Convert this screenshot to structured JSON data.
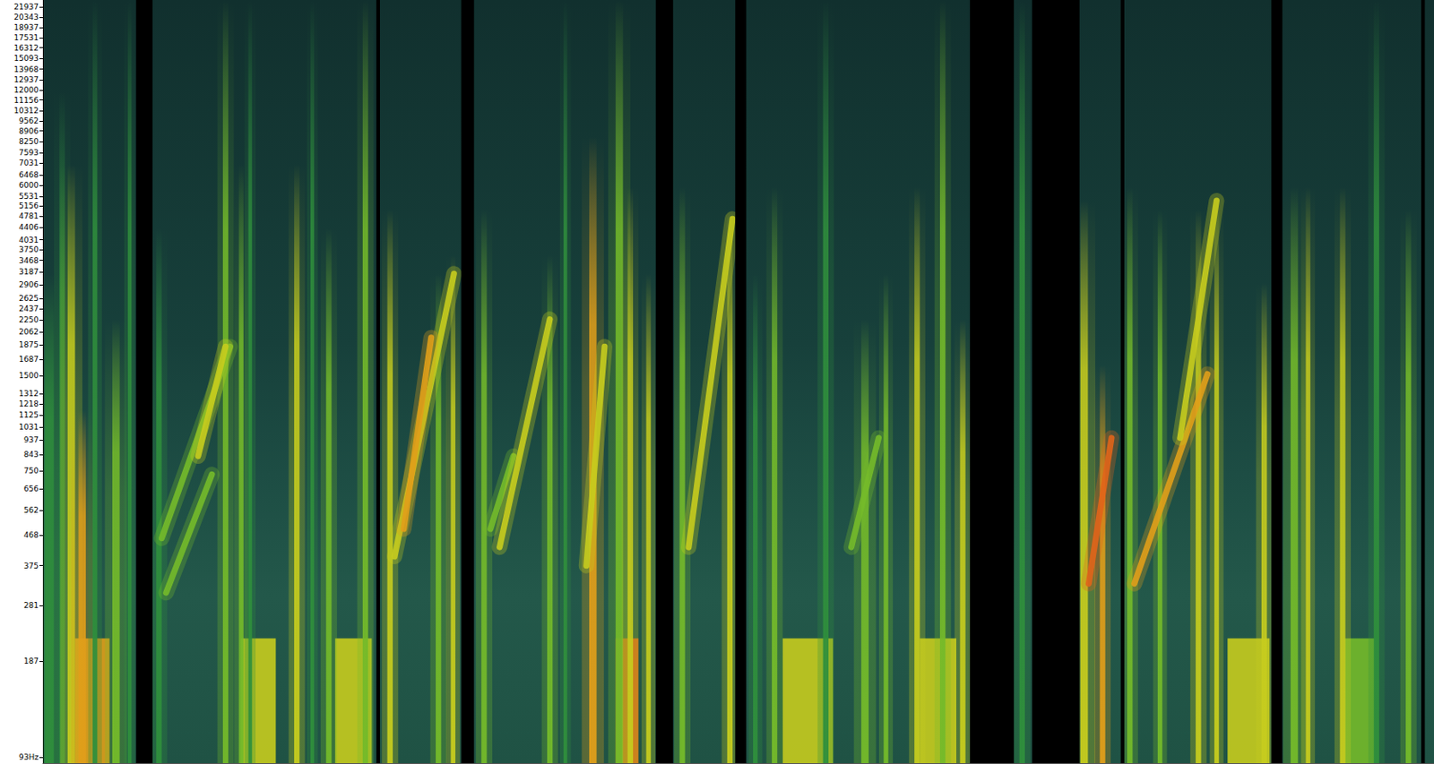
{
  "chart_data": {
    "type": "spectrogram",
    "log": "y",
    "grid": false,
    "tick_labels": "y",
    "xlim": [
      0,
      100
    ],
    "ylim": [
      89,
      23100
    ],
    "yticks": [
      {
        "value": 93,
        "label": "93Hz"
      },
      187,
      281,
      375,
      468,
      562,
      656,
      750,
      843,
      937,
      1031,
      1125,
      1218,
      1312,
      1500,
      1687,
      1875,
      2062,
      2250,
      2437,
      2625,
      2906,
      3187,
      3468,
      3750,
      4031,
      4406,
      4781,
      5156,
      5531,
      6000,
      6468,
      7031,
      7593,
      8250,
      8906,
      9562,
      10312,
      11156,
      12000,
      12937,
      13968,
      15093,
      16312,
      17531,
      18937,
      20343,
      21937
    ],
    "events": [
      {
        "kind": "block",
        "t": [
          2.3,
          4.79
        ],
        "f": [
          89,
          221
        ],
        "level": 5
      },
      {
        "kind": "block",
        "t": [
          14.25,
          16.74
        ],
        "f": [
          89,
          221
        ],
        "level": 4
      },
      {
        "kind": "block",
        "t": [
          21.01,
          23.64
        ],
        "f": [
          89,
          221
        ],
        "level": 4
      },
      {
        "kind": "block",
        "t": [
          41.17,
          42.81
        ],
        "f": [
          89,
          221
        ],
        "level": 6
      },
      {
        "kind": "block",
        "t": [
          53.18,
          56.8
        ],
        "f": [
          89,
          221
        ],
        "level": 4
      },
      {
        "kind": "block",
        "t": [
          63.03,
          65.66
        ],
        "f": [
          89,
          221
        ],
        "level": 4
      },
      {
        "kind": "block",
        "t": [
          85.16,
          88.18
        ],
        "f": [
          89,
          221
        ],
        "level": 4
      },
      {
        "kind": "block",
        "t": [
          93.57,
          95.73
        ],
        "f": [
          89,
          221
        ],
        "level": 3
      },
      {
        "kind": "streak",
        "t": [
          0.13,
          0.79
        ],
        "f": [
          89,
          3145
        ],
        "level": 2
      },
      {
        "kind": "streak",
        "t": [
          1.19,
          1.58
        ],
        "f": [
          89,
          11880
        ],
        "level": 2
      },
      {
        "kind": "streak",
        "t": [
          1.78,
          2.31
        ],
        "f": [
          89,
          6980
        ],
        "level": 4
      },
      {
        "kind": "streak",
        "t": [
          2.56,
          3.09
        ],
        "f": [
          89,
          1162
        ],
        "level": 5
      },
      {
        "kind": "streak",
        "t": [
          3.58,
          3.91
        ],
        "f": [
          89,
          23100
        ],
        "level": 2
      },
      {
        "kind": "streak",
        "t": [
          4.99,
          5.52
        ],
        "f": [
          89,
          2257
        ],
        "level": 3
      },
      {
        "kind": "streak",
        "t": [
          6.11,
          6.37
        ],
        "f": [
          89,
          23100
        ],
        "level": 2
      },
      {
        "kind": "streak",
        "t": [
          8.15,
          8.54
        ],
        "f": [
          89,
          4385
        ],
        "level": 2
      },
      {
        "kind": "streak",
        "t": [
          12.94,
          13.33
        ],
        "f": [
          89,
          23100
        ],
        "level": 3
      },
      {
        "kind": "streak",
        "t": [
          14.09,
          14.42
        ],
        "f": [
          89,
          6980
        ],
        "level": 3
      },
      {
        "kind": "streak",
        "t": [
          14.77,
          15.03
        ],
        "f": [
          89,
          23100
        ],
        "level": 2
      },
      {
        "kind": "streak",
        "t": [
          18.06,
          18.45
        ],
        "f": [
          89,
          6980
        ],
        "level": 4
      },
      {
        "kind": "streak",
        "t": [
          19.24,
          19.5
        ],
        "f": [
          89,
          23100
        ],
        "level": 2
      },
      {
        "kind": "streak",
        "t": [
          20.36,
          20.75
        ],
        "f": [
          89,
          4385
        ],
        "level": 3
      },
      {
        "kind": "streak",
        "t": [
          22.99,
          23.38
        ],
        "f": [
          89,
          23100
        ],
        "level": 3
      },
      {
        "kind": "streak",
        "t": [
          24.76,
          25.15
        ],
        "f": [
          89,
          5012
        ],
        "level": 4
      },
      {
        "kind": "streak",
        "t": [
          28.24,
          28.63
        ],
        "f": [
          89,
          3145
        ],
        "level": 3
      },
      {
        "kind": "streak",
        "t": [
          29.32,
          29.65
        ],
        "f": [
          89,
          3595
        ],
        "level": 4
      },
      {
        "kind": "streak",
        "t": [
          31.52,
          31.91
        ],
        "f": [
          89,
          5012
        ],
        "level": 3
      },
      {
        "kind": "streak",
        "t": [
          36.25,
          36.64
        ],
        "f": [
          89,
          3595
        ],
        "level": 3
      },
      {
        "kind": "streak",
        "t": [
          37.43,
          37.69
        ],
        "f": [
          89,
          23100
        ],
        "level": 2
      },
      {
        "kind": "streak",
        "t": [
          39.27,
          39.8
        ],
        "f": [
          89,
          8530
        ],
        "level": 5
      },
      {
        "kind": "streak",
        "t": [
          41.17,
          41.7
        ],
        "f": [
          89,
          23100
        ],
        "level": 3
      },
      {
        "kind": "streak",
        "t": [
          42.03,
          42.42
        ],
        "f": [
          89,
          5920
        ],
        "level": 4
      },
      {
        "kind": "streak",
        "t": [
          43.37,
          43.7
        ],
        "f": [
          89,
          3145
        ],
        "level": 4
      },
      {
        "kind": "streak",
        "t": [
          45.77,
          46.16
        ],
        "f": [
          89,
          5920
        ],
        "level": 3
      },
      {
        "kind": "streak",
        "t": [
          49.19,
          49.58
        ],
        "f": [
          89,
          5012
        ],
        "level": 4
      },
      {
        "kind": "streak",
        "t": [
          51.05,
          51.38
        ],
        "f": [
          89,
          3145
        ],
        "level": 2
      },
      {
        "kind": "streak",
        "t": [
          52.4,
          52.79
        ],
        "f": [
          89,
          5920
        ],
        "level": 3
      },
      {
        "kind": "streak",
        "t": [
          56.08,
          56.47
        ],
        "f": [
          89,
          23100
        ],
        "level": 2
      },
      {
        "kind": "streak",
        "t": [
          58.83,
          59.36
        ],
        "f": [
          89,
          2257
        ],
        "level": 3
      },
      {
        "kind": "streak",
        "t": [
          60.44,
          60.77
        ],
        "f": [
          89,
          3145
        ],
        "level": 3
      },
      {
        "kind": "streak",
        "t": [
          62.65,
          63.04
        ],
        "f": [
          89,
          5920
        ],
        "level": 4
      },
      {
        "kind": "streak",
        "t": [
          64.49,
          64.88
        ],
        "f": [
          89,
          23100
        ],
        "level": 3
      },
      {
        "kind": "streak",
        "t": [
          65.93,
          66.32
        ],
        "f": [
          89,
          2257
        ],
        "level": 4
      },
      {
        "kind": "streak",
        "t": [
          70.2,
          70.59
        ],
        "f": [
          89,
          23100
        ],
        "level": 2
      },
      {
        "kind": "streak",
        "t": [
          74.59,
          75.12
        ],
        "f": [
          89,
          5356
        ],
        "level": 4
      },
      {
        "kind": "streak",
        "t": [
          75.98,
          76.37
        ],
        "f": [
          89,
          1619
        ],
        "level": 5
      },
      {
        "kind": "streak",
        "t": [
          77.94,
          78.33
        ],
        "f": [
          89,
          5920
        ],
        "level": 3
      },
      {
        "kind": "streak",
        "t": [
          80.14,
          80.47
        ],
        "f": [
          89,
          5012
        ],
        "level": 3
      },
      {
        "kind": "streak",
        "t": [
          82.87,
          83.26
        ],
        "f": [
          89,
          5012
        ],
        "level": 4
      },
      {
        "kind": "streak",
        "t": [
          84.21,
          84.54
        ],
        "f": [
          89,
          5356
        ],
        "level": 4
      },
      {
        "kind": "streak",
        "t": [
          87.6,
          87.99
        ],
        "f": [
          89,
          2942
        ],
        "level": 4
      },
      {
        "kind": "streak",
        "t": [
          89.69,
          90.22
        ],
        "f": [
          89,
          5920
        ],
        "level": 3
      },
      {
        "kind": "streak",
        "t": [
          90.78,
          91.11
        ],
        "f": [
          89,
          5920
        ],
        "level": 4
      },
      {
        "kind": "streak",
        "t": [
          93.24,
          93.63
        ],
        "f": [
          89,
          5920
        ],
        "level": 4
      },
      {
        "kind": "streak",
        "t": [
          95.67,
          96.06
        ],
        "f": [
          89,
          23100
        ],
        "level": 2
      },
      {
        "kind": "streak",
        "t": [
          97.97,
          98.36
        ],
        "f": [
          89,
          5012
        ],
        "level": 3
      },
      {
        "kind": "chirp",
        "t": [
          8.86,
          12.15
        ],
        "f": [
          308,
          729
        ],
        "level": 3
      },
      {
        "kind": "chirp",
        "t": [
          8.54,
          13.46
        ],
        "f": [
          458,
          1850
        ],
        "level": 3
      },
      {
        "kind": "chirp",
        "t": [
          11.16,
          13.13
        ],
        "f": [
          833,
          1850
        ],
        "level": 4
      },
      {
        "kind": "chirp",
        "t": [
          25.28,
          29.55
        ],
        "f": [
          401,
          3145
        ],
        "level": 4
      },
      {
        "kind": "chirp",
        "t": [
          25.94,
          27.91
        ],
        "f": [
          490,
          1976
        ],
        "level": 5
      },
      {
        "kind": "chirp",
        "t": [
          32.17,
          33.82
        ],
        "f": [
          490,
          833
        ],
        "level": 3
      },
      {
        "kind": "chirp",
        "t": [
          32.83,
          36.44
        ],
        "f": [
          429,
          2257
        ],
        "level": 4
      },
      {
        "kind": "chirp",
        "t": [
          39.07,
          40.38
        ],
        "f": [
          375,
          1850
        ],
        "level": 4
      },
      {
        "kind": "chirp",
        "t": [
          46.42,
          49.57
        ],
        "f": [
          429,
          4688
        ],
        "level": 4
      },
      {
        "kind": "chirp",
        "t": [
          58.11,
          60.08
        ],
        "f": [
          429,
          951
        ],
        "level": 3
      },
      {
        "kind": "chirp",
        "t": [
          75.18,
          76.82
        ],
        "f": [
          329,
          951
        ],
        "level": 6
      },
      {
        "kind": "chirp",
        "t": [
          78.46,
          83.72
        ],
        "f": [
          329,
          1515
        ],
        "level": 5
      },
      {
        "kind": "chirp",
        "t": [
          81.75,
          84.37
        ],
        "f": [
          951,
          5356
        ],
        "level": 4
      },
      {
        "kind": "block",
        "t": [
          6.7,
          7.88
        ],
        "f": [
          89,
          23100
        ],
        "level": 0
      },
      {
        "kind": "block",
        "t": [
          23.97,
          24.23
        ],
        "f": [
          89,
          23100
        ],
        "level": 0
      },
      {
        "kind": "block",
        "t": [
          30.07,
          30.99
        ],
        "f": [
          89,
          23100
        ],
        "level": 0
      },
      {
        "kind": "block",
        "t": [
          44.06,
          45.3
        ],
        "f": [
          89,
          23100
        ],
        "level": 0
      },
      {
        "kind": "block",
        "t": [
          49.77,
          50.56
        ],
        "f": [
          89,
          23100
        ],
        "level": 0
      },
      {
        "kind": "block",
        "t": [
          66.64,
          69.8
        ],
        "f": [
          89,
          23100
        ],
        "level": 0
      },
      {
        "kind": "block",
        "t": [
          71.11,
          74.52
        ],
        "f": [
          89,
          23100
        ],
        "level": 0
      },
      {
        "kind": "block",
        "t": [
          77.48,
          77.74
        ],
        "f": [
          89,
          23100
        ],
        "level": 0
      },
      {
        "kind": "block",
        "t": [
          88.31,
          89.1
        ],
        "f": [
          89,
          23100
        ],
        "level": 0
      },
      {
        "kind": "block",
        "t": [
          99.08,
          99.34
        ],
        "f": [
          89,
          23100
        ],
        "level": 0
      }
    ]
  }
}
